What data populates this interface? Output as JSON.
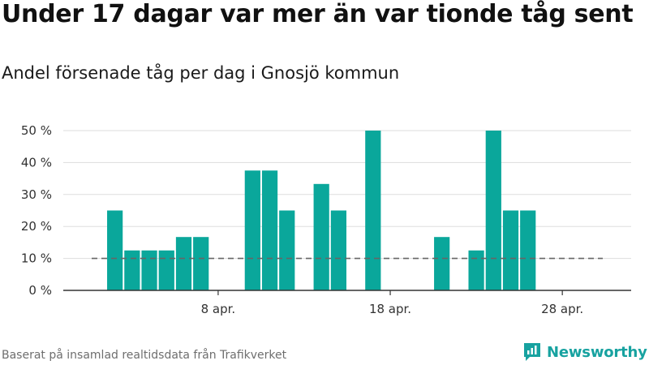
{
  "title": "Under 17 dagar var mer än var tionde tåg sent",
  "subtitle": "Andel försenade tåg per dag i Gnosjö kommun",
  "source": "Baserat på insamlad realtidsdata från Trafikverket",
  "brand": {
    "name": "Newsworthy",
    "icon": "newsworthy-logo-icon"
  },
  "colors": {
    "bar": "#0aa79b",
    "grid": "#dddddd",
    "axis": "#333333",
    "reference": "#666666",
    "brand": "#17a2a0"
  },
  "chart_data": {
    "type": "bar",
    "x_type": "date",
    "x": [
      "2023-04-01",
      "2023-04-02",
      "2023-04-03",
      "2023-04-04",
      "2023-04-05",
      "2023-04-06",
      "2023-04-07",
      "2023-04-08",
      "2023-04-09",
      "2023-04-10",
      "2023-04-11",
      "2023-04-12",
      "2023-04-13",
      "2023-04-14",
      "2023-04-15",
      "2023-04-16",
      "2023-04-17",
      "2023-04-18",
      "2023-04-19",
      "2023-04-20",
      "2023-04-21",
      "2023-04-22",
      "2023-04-23",
      "2023-04-24",
      "2023-04-25",
      "2023-04-26",
      "2023-04-27",
      "2023-04-28",
      "2023-04-29",
      "2023-04-30"
    ],
    "values": [
      0,
      25,
      12.5,
      12.5,
      12.5,
      16.7,
      16.7,
      0,
      0,
      37.5,
      37.5,
      25,
      0,
      33.3,
      25,
      0,
      50,
      0,
      0,
      0,
      16.7,
      0,
      12.5,
      50,
      25,
      25,
      0,
      0,
      0,
      0
    ],
    "xlim": [
      "2023-03-30",
      "2023-05-02"
    ],
    "ylim": [
      0,
      50
    ],
    "y_ticks": [
      0,
      10,
      20,
      30,
      40,
      50
    ],
    "y_tick_labels": [
      "0 %",
      "10 %",
      "20 %",
      "30 %",
      "40 %",
      "50 %"
    ],
    "x_ticks": [
      "2023-04-08",
      "2023-04-18",
      "2023-04-28"
    ],
    "x_tick_labels": [
      "8 apr.",
      "18 apr.",
      "28 apr."
    ],
    "reference_line": {
      "y": 10,
      "style": "dashed"
    },
    "grid": true,
    "xlabel": "",
    "ylabel": ""
  }
}
